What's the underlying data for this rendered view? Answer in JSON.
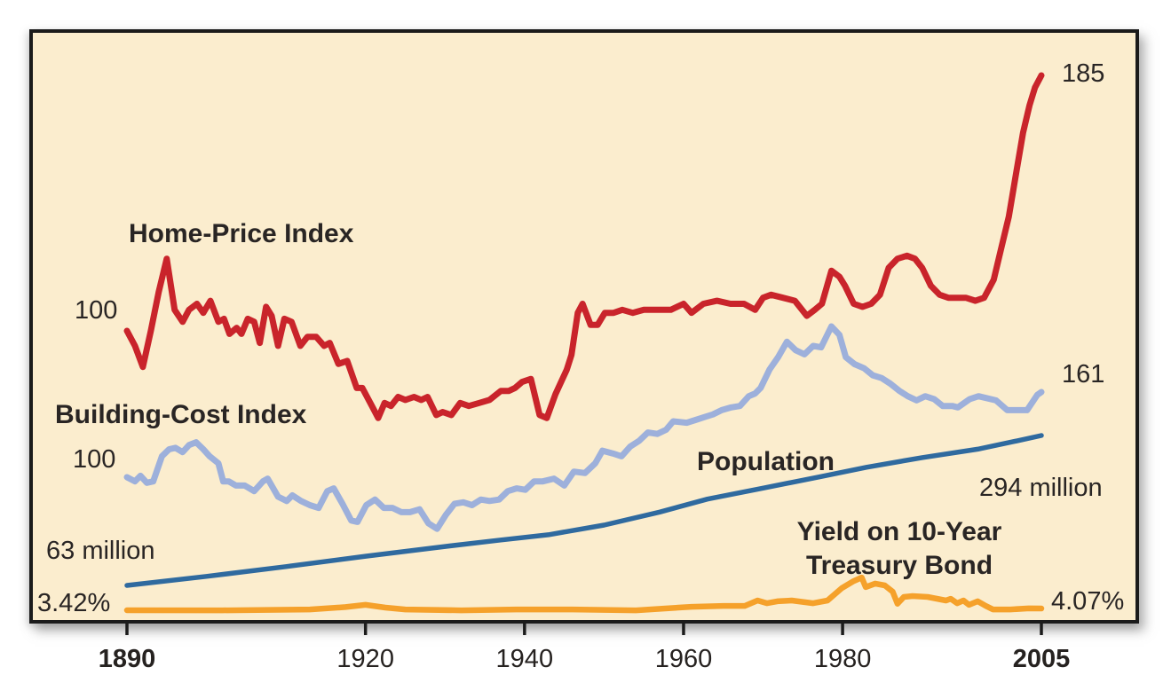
{
  "figure": {
    "background_color": "#FBEDCE",
    "border_color": "#1b1b1b",
    "text_color": "#292524"
  },
  "labels": {
    "home_price_title": "Home-Price Index",
    "home_price_start_value": "100",
    "home_price_end_value": "185",
    "building_cost_title": "Building-Cost Index",
    "building_cost_start_value": "100",
    "building_cost_end_value": "161",
    "population_title": "Population",
    "population_start_value": "63 million",
    "population_end_value": "294 million",
    "yield_title_line1": "Yield on 10-Year",
    "yield_title_line2": "Treasury Bond",
    "yield_start_value": "3.42%",
    "yield_end_value": "4.07%"
  },
  "axis": {
    "ticks": [
      {
        "label": "1890",
        "year": 1890,
        "bold": true
      },
      {
        "label": "1920",
        "year": 1920,
        "bold": false
      },
      {
        "label": "1940",
        "year": 1940,
        "bold": false
      },
      {
        "label": "1960",
        "year": 1960,
        "bold": false
      },
      {
        "label": "1980",
        "year": 1980,
        "bold": false
      },
      {
        "label": "2005",
        "year": 2005,
        "bold": true
      }
    ]
  },
  "chart_data": {
    "type": "line",
    "title": "Home prices, building costs, population and interest rates, 1890-2005",
    "x_range": [
      1890,
      2005
    ],
    "grid": false,
    "legend": "inline-labels",
    "series": [
      {
        "name": "Home-Price Index",
        "color": "#C9242B",
        "start_label": "100",
        "end_label": "185",
        "points": [
          [
            1890,
            100
          ],
          [
            1891,
            95
          ],
          [
            1892,
            88
          ],
          [
            1893,
            100
          ],
          [
            1894,
            113
          ],
          [
            1895,
            124
          ],
          [
            1896,
            107
          ],
          [
            1897,
            103
          ],
          [
            1897.8,
            107
          ],
          [
            1898.8,
            109
          ],
          [
            1899.6,
            106
          ],
          [
            1900.5,
            110
          ],
          [
            1901.5,
            103
          ],
          [
            1902.2,
            104
          ],
          [
            1902.9,
            99
          ],
          [
            1903.8,
            101
          ],
          [
            1904.4,
            99
          ],
          [
            1905.2,
            104
          ],
          [
            1906,
            103
          ],
          [
            1906.7,
            96
          ],
          [
            1907.5,
            108
          ],
          [
            1908.2,
            105
          ],
          [
            1909,
            95
          ],
          [
            1909.8,
            104
          ],
          [
            1910.7,
            103
          ],
          [
            1911.8,
            95
          ],
          [
            1912.7,
            98
          ],
          [
            1913.8,
            98
          ],
          [
            1914.8,
            95
          ],
          [
            1915.5,
            96
          ],
          [
            1916.6,
            89
          ],
          [
            1917.7,
            90
          ],
          [
            1918.9,
            81
          ],
          [
            1919.6,
            81
          ],
          [
            1920.8,
            75
          ],
          [
            1921.6,
            71
          ],
          [
            1922.4,
            76
          ],
          [
            1923.2,
            75
          ],
          [
            1924.1,
            78
          ],
          [
            1925,
            77
          ],
          [
            1926.1,
            78
          ],
          [
            1927,
            77
          ],
          [
            1927.8,
            78
          ],
          [
            1928.9,
            72
          ],
          [
            1929.7,
            73
          ],
          [
            1930.8,
            72
          ],
          [
            1931.9,
            76
          ],
          [
            1933,
            75
          ],
          [
            1934.3,
            76
          ],
          [
            1935.6,
            77
          ],
          [
            1937,
            80
          ],
          [
            1938,
            80
          ],
          [
            1938.8,
            81
          ],
          [
            1939.7,
            83
          ],
          [
            1940.8,
            84
          ],
          [
            1941.9,
            72
          ],
          [
            1942.8,
            71
          ],
          [
            1943.9,
            79
          ],
          [
            1945.3,
            87
          ],
          [
            1945.9,
            92
          ],
          [
            1946.7,
            106
          ],
          [
            1947.3,
            109
          ],
          [
            1948.3,
            102
          ],
          [
            1949.2,
            102
          ],
          [
            1950.1,
            106
          ],
          [
            1951.2,
            106
          ],
          [
            1952.3,
            107
          ],
          [
            1953.6,
            106
          ],
          [
            1955,
            107
          ],
          [
            1956.7,
            107
          ],
          [
            1958.4,
            107
          ],
          [
            1960,
            109
          ],
          [
            1961,
            106
          ],
          [
            1962.5,
            109
          ],
          [
            1964.2,
            110
          ],
          [
            1965.9,
            109
          ],
          [
            1967.6,
            109
          ],
          [
            1969,
            107
          ],
          [
            1970,
            111
          ],
          [
            1971,
            112
          ],
          [
            1972.5,
            111
          ],
          [
            1974,
            110
          ],
          [
            1975.5,
            105
          ],
          [
            1976.5,
            107
          ],
          [
            1977.4,
            109
          ],
          [
            1978.6,
            120
          ],
          [
            1979.6,
            118
          ],
          [
            1980.3,
            115
          ],
          [
            1981.4,
            109
          ],
          [
            1982.5,
            108
          ],
          [
            1983.6,
            109
          ],
          [
            1984.7,
            112
          ],
          [
            1985.8,
            121
          ],
          [
            1986.9,
            124
          ],
          [
            1988.1,
            125
          ],
          [
            1989.1,
            124
          ],
          [
            1990,
            121
          ],
          [
            1991.1,
            115
          ],
          [
            1992.2,
            112
          ],
          [
            1993.3,
            111
          ],
          [
            1994.4,
            111
          ],
          [
            1995.5,
            111
          ],
          [
            1996.7,
            110
          ],
          [
            1997.8,
            111
          ],
          [
            1999,
            117
          ],
          [
            2000,
            128
          ],
          [
            2000.9,
            138
          ],
          [
            2001.8,
            152
          ],
          [
            2002.7,
            166
          ],
          [
            2003.5,
            175
          ],
          [
            2004.2,
            181
          ],
          [
            2005,
            185
          ]
        ]
      },
      {
        "name": "Building-Cost Index",
        "color": "#9DB0DB",
        "start_label": "100",
        "end_label": "161",
        "points": [
          [
            1890,
            100
          ],
          [
            1891,
            97
          ],
          [
            1891.7,
            101
          ],
          [
            1892.5,
            96
          ],
          [
            1893.3,
            97
          ],
          [
            1894.4,
            115
          ],
          [
            1895.3,
            120
          ],
          [
            1896.1,
            121
          ],
          [
            1897,
            118
          ],
          [
            1897.8,
            123
          ],
          [
            1898.7,
            125
          ],
          [
            1899.6,
            120
          ],
          [
            1900.4,
            115
          ],
          [
            1901.5,
            110
          ],
          [
            1902.1,
            97
          ],
          [
            1902.8,
            97
          ],
          [
            1903.7,
            94
          ],
          [
            1904.8,
            94
          ],
          [
            1906,
            90
          ],
          [
            1907.1,
            97
          ],
          [
            1907.7,
            99
          ],
          [
            1909,
            86
          ],
          [
            1910.1,
            83
          ],
          [
            1910.8,
            87
          ],
          [
            1911.9,
            83
          ],
          [
            1913,
            80
          ],
          [
            1914.1,
            78
          ],
          [
            1915.2,
            90
          ],
          [
            1916,
            92
          ],
          [
            1917.1,
            81
          ],
          [
            1918.2,
            69
          ],
          [
            1919,
            68
          ],
          [
            1920.1,
            80
          ],
          [
            1921.2,
            84
          ],
          [
            1922.3,
            78
          ],
          [
            1923.4,
            78
          ],
          [
            1924.5,
            75
          ],
          [
            1925.6,
            75
          ],
          [
            1926.8,
            77
          ],
          [
            1927.9,
            67
          ],
          [
            1929,
            63
          ],
          [
            1930.1,
            73
          ],
          [
            1931.2,
            81
          ],
          [
            1932.3,
            82
          ],
          [
            1933.4,
            80
          ],
          [
            1934.5,
            84
          ],
          [
            1935.6,
            83
          ],
          [
            1936.8,
            84
          ],
          [
            1937.9,
            90
          ],
          [
            1939,
            92
          ],
          [
            1940.1,
            91
          ],
          [
            1941.2,
            97
          ],
          [
            1942.3,
            97
          ],
          [
            1943.7,
            99
          ],
          [
            1945,
            94
          ],
          [
            1946.2,
            104
          ],
          [
            1947.6,
            103
          ],
          [
            1948.9,
            110
          ],
          [
            1949.8,
            119
          ],
          [
            1951.1,
            117
          ],
          [
            1952.2,
            115
          ],
          [
            1953.3,
            122
          ],
          [
            1954.4,
            126
          ],
          [
            1955.5,
            132
          ],
          [
            1956.7,
            131
          ],
          [
            1957.8,
            134
          ],
          [
            1958.7,
            140
          ],
          [
            1960.4,
            139
          ],
          [
            1961.5,
            141
          ],
          [
            1962.6,
            143
          ],
          [
            1963.7,
            145
          ],
          [
            1964.8,
            148
          ],
          [
            1966,
            150
          ],
          [
            1967.1,
            151
          ],
          [
            1968.2,
            158
          ],
          [
            1969,
            160
          ],
          [
            1969.7,
            164
          ],
          [
            1970.8,
            177
          ],
          [
            1971.9,
            186
          ],
          [
            1973,
            197
          ],
          [
            1974.1,
            191
          ],
          [
            1975.2,
            188
          ],
          [
            1976.3,
            194
          ],
          [
            1977.3,
            193
          ],
          [
            1978.6,
            208
          ],
          [
            1979.6,
            202
          ],
          [
            1980.4,
            186
          ],
          [
            1981.5,
            181
          ],
          [
            1982.7,
            178
          ],
          [
            1983.8,
            173
          ],
          [
            1984.9,
            171
          ],
          [
            1986,
            167
          ],
          [
            1987.1,
            162
          ],
          [
            1988.2,
            158
          ],
          [
            1989.3,
            155
          ],
          [
            1990.4,
            158
          ],
          [
            1991.5,
            156
          ],
          [
            1992.6,
            151
          ],
          [
            1993.8,
            151
          ],
          [
            1994.5,
            150
          ],
          [
            1996,
            156
          ],
          [
            1997.1,
            158
          ],
          [
            1999.3,
            155
          ],
          [
            2000.7,
            148
          ],
          [
            2002.1,
            148
          ],
          [
            2003.2,
            148
          ],
          [
            2004.5,
            159
          ],
          [
            2005,
            161
          ]
        ]
      },
      {
        "name": "Population (millions)",
        "color": "#2F6A9F",
        "start_label": "63 million",
        "end_label": "294 million",
        "points": [
          [
            1890,
            63
          ],
          [
            1900,
            77
          ],
          [
            1910,
            92
          ],
          [
            1920,
            108
          ],
          [
            1930,
            123
          ],
          [
            1937,
            133
          ],
          [
            1943,
            141
          ],
          [
            1950,
            156
          ],
          [
            1957,
            176
          ],
          [
            1963,
            196
          ],
          [
            1970,
            213
          ],
          [
            1977,
            230
          ],
          [
            1983,
            245
          ],
          [
            1990,
            260
          ],
          [
            1997,
            273
          ],
          [
            2002,
            286
          ],
          [
            2005,
            294
          ]
        ]
      },
      {
        "name": "Yield on 10-Year Treasury Bond (%)",
        "color": "#F5A12B",
        "start_label": "3.42%",
        "end_label": "4.07%",
        "points": [
          [
            1890,
            3.42
          ],
          [
            1902,
            3.4
          ],
          [
            1913,
            3.7
          ],
          [
            1917.5,
            4.6
          ],
          [
            1920,
            5.4
          ],
          [
            1922.5,
            4.4
          ],
          [
            1925,
            3.7
          ],
          [
            1932,
            3.4
          ],
          [
            1939,
            3.7
          ],
          [
            1946,
            3.7
          ],
          [
            1954,
            3.4
          ],
          [
            1961,
            4.7
          ],
          [
            1965,
            5.0
          ],
          [
            1967.7,
            5.0
          ],
          [
            1969.3,
            7.0
          ],
          [
            1970.5,
            6.0
          ],
          [
            1971.8,
            6.7
          ],
          [
            1973.6,
            7.0
          ],
          [
            1976.3,
            6.0
          ],
          [
            1978.1,
            7.0
          ],
          [
            1979.9,
            11.5
          ],
          [
            1981.4,
            14.1
          ],
          [
            1982.4,
            15.4
          ],
          [
            1982.9,
            11.9
          ],
          [
            1984.1,
            13.2
          ],
          [
            1985.3,
            12.5
          ],
          [
            1986.3,
            10.2
          ],
          [
            1986.9,
            5.8
          ],
          [
            1987.7,
            8.3
          ],
          [
            1988.8,
            8.6
          ],
          [
            1990.7,
            8.3
          ],
          [
            1993,
            7.0
          ],
          [
            1993.6,
            7.6
          ],
          [
            1994.4,
            6.0
          ],
          [
            1995.2,
            7.0
          ],
          [
            1995.9,
            5.4
          ],
          [
            1997,
            6.7
          ],
          [
            1998,
            5.0
          ],
          [
            1998.9,
            3.7
          ],
          [
            2001.1,
            3.7
          ],
          [
            2003.4,
            4.1
          ],
          [
            2005,
            4.07
          ]
        ]
      }
    ]
  }
}
